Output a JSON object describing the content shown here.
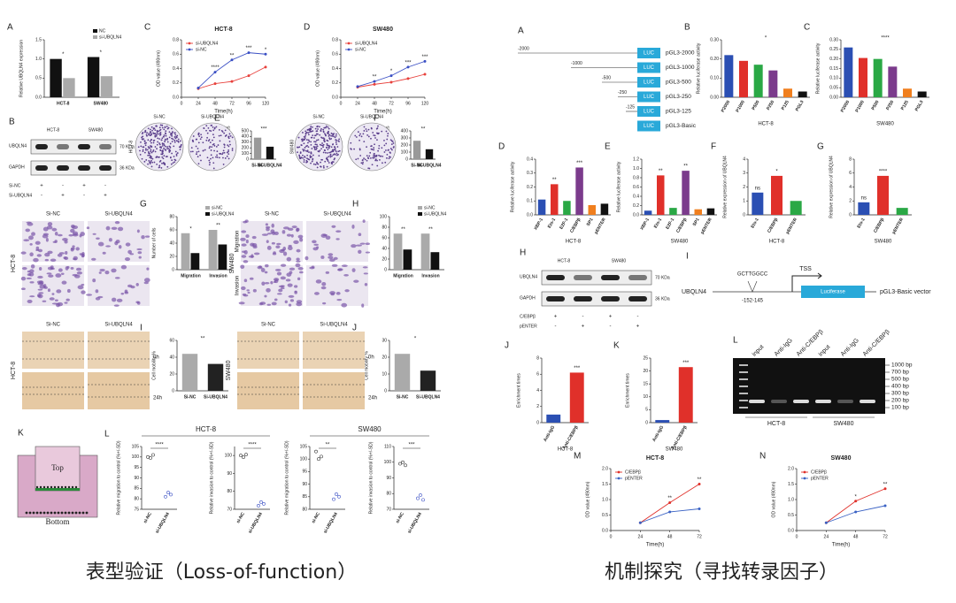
{
  "chart_data": [
    {
      "type": "bar",
      "panel": "A",
      "ylabel": "Relative UBQLN4 expression",
      "categories": [
        "HCT-8",
        "SW480"
      ],
      "series": [
        {
          "name": "NC",
          "color": "#111111",
          "values": [
            1.0,
            1.05
          ]
        },
        {
          "name": "si-UBQLN4",
          "color": "#aaaaaa",
          "values": [
            0.5,
            0.55
          ]
        }
      ],
      "ylim": [
        0,
        1.5
      ],
      "yticks": [
        {
          "value": 0,
          "label": "0.0"
        },
        0.5,
        {
          "value": 1,
          "label": "1.0"
        },
        1.5
      ],
      "annotations": [
        "*",
        "*"
      ]
    },
    {
      "type": "line",
      "panel": "C",
      "title": "HCT-8",
      "xlabel": "Time(h)",
      "ylabel": "OD value (490nm)",
      "x": [
        24,
        48,
        72,
        96,
        120
      ],
      "xlim": [
        0,
        120
      ],
      "xticks": [
        0,
        24,
        48,
        72,
        96,
        120
      ],
      "series": [
        {
          "name": "si-UBQLN4",
          "color": "#e8413c",
          "values": [
            0.12,
            0.19,
            0.22,
            0.3,
            0.42
          ]
        },
        {
          "name": "si-NC",
          "color": "#3a4fc4",
          "values": [
            0.13,
            0.35,
            0.52,
            0.62,
            0.6
          ]
        }
      ],
      "ylim": [
        0,
        0.8
      ],
      "yticks": [
        {
          "value": 0,
          "label": "0.0"
        },
        0.2,
        0.4,
        0.6,
        0.8
      ],
      "annotations": [
        "****",
        "**",
        "***",
        "*"
      ]
    },
    {
      "type": "line",
      "panel": "D",
      "title": "SW480",
      "xlabel": "Time(h)",
      "ylabel": "OD value (490nm)",
      "x": [
        24,
        48,
        72,
        96,
        120
      ],
      "xlim": [
        0,
        120
      ],
      "xticks": [
        0,
        24,
        48,
        72,
        96,
        120
      ],
      "series": [
        {
          "name": "si-UBQLN4",
          "color": "#e8413c",
          "values": [
            0.14,
            0.18,
            0.21,
            0.26,
            0.32
          ]
        },
        {
          "name": "si-NC",
          "color": "#3a4fc4",
          "values": [
            0.15,
            0.22,
            0.3,
            0.42,
            0.5
          ]
        }
      ],
      "ylim": [
        0,
        0.8
      ],
      "yticks": [
        {
          "value": 0,
          "label": "0.0"
        },
        0.2,
        0.4,
        0.6,
        0.8
      ],
      "annotations": [
        "**",
        "*",
        "***",
        "***"
      ]
    },
    {
      "type": "bar",
      "panel": "E",
      "ylabel": "Number of colonies",
      "categories": [
        "Si-NC",
        "Si-UBQLN4"
      ],
      "values": [
        380,
        220
      ],
      "colors": [
        "#999999",
        "#111111"
      ],
      "ylim": [
        0,
        500
      ],
      "yticks": [
        0,
        100,
        200,
        300,
        400,
        500
      ],
      "annotations": [
        "***"
      ]
    },
    {
      "type": "bar",
      "panel": "F",
      "ylabel": "Number of colonies",
      "categories": [
        "Si-NC",
        "Si-UBQLN4"
      ],
      "values": [
        260,
        140
      ],
      "colors": [
        "#999999",
        "#111111"
      ],
      "ylim": [
        0,
        400
      ],
      "yticks": [
        0,
        100,
        200,
        300,
        400
      ],
      "annotations": [
        "**"
      ]
    },
    {
      "type": "bar",
      "panel": "G",
      "ylabel": "Number of cells",
      "categories": [
        "Migration",
        "Invasion"
      ],
      "series": [
        {
          "name": "si-NC",
          "color": "#aaaaaa",
          "values": [
            55,
            60
          ]
        },
        {
          "name": "si-UBQLN4",
          "color": "#111111",
          "values": [
            25,
            38
          ]
        }
      ],
      "ylim": [
        0,
        80
      ],
      "yticks": [
        0,
        20,
        40,
        60,
        80
      ],
      "annotations": [
        "*",
        "**"
      ]
    },
    {
      "type": "bar",
      "panel": "H",
      "ylabel": "Number of cells",
      "categories": [
        "Migration",
        "Invasion"
      ],
      "series": [
        {
          "name": "si-NC",
          "color": "#aaaaaa",
          "values": [
            68,
            68
          ]
        },
        {
          "name": "si-UBQLN4",
          "color": "#111111",
          "values": [
            38,
            33
          ]
        }
      ],
      "ylim": [
        0,
        100
      ],
      "yticks": [
        0,
        20,
        40,
        60,
        80,
        100
      ],
      "annotations": [
        "**",
        "**"
      ]
    },
    {
      "type": "bar",
      "panel": "I",
      "ylabel": "Cell mobility %",
      "categories": [
        "Si-NC",
        "Si-UBQLN4"
      ],
      "values": [
        44,
        32
      ],
      "colors": [
        "#aaaaaa",
        "#222222"
      ],
      "ylim": [
        0,
        60
      ],
      "yticks": [
        0,
        20,
        40,
        60
      ],
      "annotations": [
        "**"
      ]
    },
    {
      "type": "bar",
      "panel": "J",
      "ylabel": "Cell mobility %",
      "categories": [
        "Si-NC",
        "Si-UBQLN4"
      ],
      "values": [
        22,
        12
      ],
      "colors": [
        "#aaaaaa",
        "#222222"
      ],
      "ylim": [
        0,
        30
      ],
      "yticks": [
        0,
        10,
        20,
        30
      ],
      "annotations": [
        "*"
      ]
    },
    {
      "type": "dot",
      "panel": "L",
      "ylabel": "Relative migration to control (%+/-SD)",
      "categories": [
        "si-NC",
        "si-UBQLN4"
      ],
      "points": [
        [
          100,
          99.5,
          101
        ],
        [
          81,
          83,
          82
        ]
      ],
      "ylim": [
        75,
        105
      ],
      "yticks": [
        75,
        80,
        85,
        90,
        95,
        100,
        105
      ],
      "annotations": [
        "****"
      ]
    },
    {
      "type": "dot",
      "ylabel": "Relative invasion to control (%+/-SD)",
      "categories": [
        "si-NC",
        "si-UBQLN4"
      ],
      "points": [
        [
          100,
          99,
          100.5
        ],
        [
          72,
          74,
          73
        ]
      ],
      "ylim": [
        70,
        105
      ],
      "yticks": [
        70,
        80,
        90,
        100
      ],
      "annotations": [
        "****"
      ]
    },
    {
      "type": "dot",
      "ylabel": "Relative migration to control (%+/-SD)",
      "categories": [
        "si-NC",
        "si-UBQLN4"
      ],
      "points": [
        [
          103,
          100,
          101
        ],
        [
          84,
          86,
          85
        ]
      ],
      "ylim": [
        80,
        105
      ],
      "yticks": [
        80,
        85,
        90,
        95,
        100,
        105
      ],
      "annotations": [
        "**"
      ]
    },
    {
      "type": "dot",
      "ylabel": "Relative invasion to control (%+/-SD)",
      "categories": [
        "si-NC",
        "si-UBQLN4"
      ],
      "points": [
        [
          99,
          100,
          98
        ],
        [
          77,
          79,
          76
        ]
      ],
      "ylim": [
        70,
        110
      ],
      "yticks": [
        70,
        80,
        90,
        100,
        110
      ],
      "annotations": [
        "***"
      ]
    },
    {
      "type": "bar",
      "panel": "B",
      "xlabel": "HCT-8",
      "ylabel": "Relative luciferase activity",
      "categories": [
        "P2000",
        "P1000",
        "P500",
        "P250",
        "P125",
        "PGL3"
      ],
      "values": [
        0.22,
        0.19,
        0.17,
        0.14,
        0.045,
        0.03
      ],
      "colors": [
        "#2b4fb3",
        "#e0302a",
        "#2aa845",
        "#7b3b8c",
        "#f07f1e",
        "#111111"
      ],
      "ylim": [
        0,
        0.3
      ],
      "yticks": [
        {
          "value": 0,
          "label": "0.00"
        },
        {
          "value": 0.1,
          "label": "0.10"
        },
        {
          "value": 0.2,
          "label": "0.20"
        },
        {
          "value": 0.3,
          "label": "0.30"
        }
      ],
      "annotations": [
        "*"
      ]
    },
    {
      "type": "bar",
      "panel": "C",
      "xlabel": "SW480",
      "ylabel": "Relative luciferase activity",
      "categories": [
        "P2000",
        "P1000",
        "P500",
        "P250",
        "P125",
        "PGL3"
      ],
      "values": [
        0.26,
        0.205,
        0.2,
        0.16,
        0.045,
        0.03
      ],
      "colors": [
        "#2b4fb3",
        "#e0302a",
        "#2aa845",
        "#7b3b8c",
        "#f07f1e",
        "#111111"
      ],
      "ylim": [
        0,
        0.3
      ],
      "yticks": [
        {
          "value": 0,
          "label": "0.00"
        },
        0.05,
        {
          "value": 0.1,
          "label": "0.10"
        },
        0.15,
        {
          "value": 0.2,
          "label": "0.20"
        },
        0.25,
        {
          "value": 0.3,
          "label": "0.30"
        }
      ],
      "annotations": [
        "****"
      ]
    },
    {
      "type": "bar",
      "panel": "D",
      "xlabel": "HCT-8",
      "ylabel": "Relative luciferase activity",
      "categories": [
        "XBP-1",
        "Ets-1",
        "E2F-1",
        "C/EBPβ",
        "SP1",
        "pENTER"
      ],
      "values": [
        0.11,
        0.22,
        0.1,
        0.34,
        0.07,
        0.08
      ],
      "colors": [
        "#2b4fb3",
        "#e0302a",
        "#2aa845",
        "#7b3b8c",
        "#f07f1e",
        "#111111"
      ],
      "ylim": [
        0,
        0.4
      ],
      "yticks": [
        {
          "value": 0,
          "label": "0.0"
        },
        0.1,
        0.2,
        0.3,
        0.4
      ],
      "annotations": [
        null,
        "**",
        null,
        "***",
        null,
        null
      ]
    },
    {
      "type": "bar",
      "panel": "E",
      "xlabel": "SW480",
      "ylabel": "Relative luciferase activity",
      "categories": [
        "XBP-1",
        "Ets-1",
        "E2F-1",
        "C/EBPβ",
        "SP1",
        "pENTER"
      ],
      "values": [
        0.09,
        0.85,
        0.15,
        0.95,
        0.12,
        0.14
      ],
      "colors": [
        "#2b4fb3",
        "#e0302a",
        "#2aa845",
        "#7b3b8c",
        "#f07f1e",
        "#111111"
      ],
      "ylim": [
        0,
        1.2
      ],
      "yticks": [
        {
          "value": 0,
          "label": "0.0"
        },
        0.2,
        0.4,
        0.6,
        0.8,
        {
          "value": 1,
          "label": "1.0"
        },
        1.2
      ],
      "annotations": [
        null,
        "**",
        null,
        "**",
        null,
        null
      ]
    },
    {
      "type": "bar",
      "panel": "F",
      "xlabel": "HCT-8",
      "ylabel": "Relative expression of UBQLN4",
      "categories": [
        "Ets-1",
        "C/EBPβ",
        "pENTER"
      ],
      "values": [
        1.6,
        2.8,
        1.0
      ],
      "colors": [
        "#2b4fb3",
        "#e0302a",
        "#2aa845"
      ],
      "ylim": [
        0,
        4
      ],
      "yticks": [
        0,
        1,
        2,
        3,
        4
      ],
      "annotations": [
        "ns",
        "*",
        null
      ]
    },
    {
      "type": "bar",
      "panel": "G",
      "xlabel": "SW480",
      "ylabel": "Relative expression of UBQLN4",
      "categories": [
        "Ets-1",
        "C/EBPβ",
        "pENTER"
      ],
      "values": [
        1.8,
        5.6,
        1.0
      ],
      "colors": [
        "#2b4fb3",
        "#e0302a",
        "#2aa845"
      ],
      "ylim": [
        0,
        8
      ],
      "yticks": [
        0,
        2,
        4,
        6,
        8
      ],
      "annotations": [
        "ns",
        "****",
        null
      ]
    },
    {
      "type": "bar",
      "panel": "J",
      "xlabel": "HCT-8",
      "ylabel": "Enrichment times",
      "categories": [
        "Anti-IgG",
        "Anti-C/EBPβ"
      ],
      "values": [
        1.0,
        6.2
      ],
      "colors": [
        "#2b4fb3",
        "#e0302a"
      ],
      "ylim": [
        0,
        8
      ],
      "yticks": [
        0,
        2,
        4,
        6,
        8
      ],
      "annotations": [
        null,
        "***"
      ]
    },
    {
      "type": "bar",
      "panel": "K",
      "xlabel": "SW480",
      "ylabel": "Enrichment times",
      "categories": [
        "Anti-IgG",
        "Anti-C/EBPβ"
      ],
      "values": [
        1.0,
        21.5
      ],
      "colors": [
        "#2b4fb3",
        "#e0302a"
      ],
      "ylim": [
        0,
        25
      ],
      "yticks": [
        0,
        5,
        10,
        15,
        20,
        25
      ],
      "annotations": [
        null,
        "***"
      ]
    },
    {
      "type": "line",
      "panel": "M",
      "title": "HCT-8",
      "xlabel": "Time(h)",
      "ylabel": "OD value (490nm)",
      "x": [
        24,
        48,
        72
      ],
      "xlim": [
        0,
        72
      ],
      "xticks": [
        0,
        24,
        48,
        72
      ],
      "series": [
        {
          "name": "C/EBPβ",
          "color": "#e0302a",
          "values": [
            0.25,
            0.9,
            1.5
          ]
        },
        {
          "name": "pENTER",
          "color": "#3a62c4",
          "values": [
            0.25,
            0.6,
            0.7
          ]
        }
      ],
      "ylim": [
        0,
        2
      ],
      "yticks": [
        {
          "value": 0,
          "label": "0.0"
        },
        0.5,
        {
          "value": 1,
          "label": "1.0"
        },
        1.5,
        {
          "value": 2,
          "label": "2.0"
        }
      ],
      "annotations": [
        null,
        "**",
        "**"
      ]
    },
    {
      "type": "line",
      "panel": "N",
      "title": "SW480",
      "xlabel": "Time(h)",
      "ylabel": "OD value (490nm)",
      "x": [
        24,
        48,
        72
      ],
      "xlim": [
        0,
        72
      ],
      "xticks": [
        0,
        24,
        48,
        72
      ],
      "series": [
        {
          "name": "C/EBPβ",
          "color": "#e0302a",
          "values": [
            0.25,
            0.95,
            1.35
          ]
        },
        {
          "name": "pENTER",
          "color": "#3a62c4",
          "values": [
            0.25,
            0.6,
            0.8
          ]
        }
      ],
      "ylim": [
        0,
        2
      ],
      "yticks": [
        {
          "value": 0,
          "label": "0.0"
        },
        0.5,
        {
          "value": 1,
          "label": "1.0"
        },
        1.5,
        {
          "value": 2,
          "label": "2.0"
        }
      ],
      "annotations": [
        null,
        "*",
        "**"
      ]
    }
  ],
  "figure": {
    "captions": [
      "表型验证（Loss-of-function）",
      "机制探究（寻找转录因子）"
    ],
    "left": {
      "B": {
        "letter": "B",
        "columns": [
          "HCT-8",
          "SW480"
        ],
        "rows": [
          "UBQLN4",
          "GAPDH"
        ],
        "sizes": [
          "70 KDa",
          "36 KDa"
        ],
        "conditions": [
          {
            "name": "Si-NC",
            "signs": [
              "+",
              "-",
              "+",
              "-"
            ]
          },
          {
            "name": "Si-UBQLN4",
            "signs": [
              "-",
              "+",
              "-",
              "+"
            ]
          }
        ]
      },
      "E": {
        "groups": [
          "Si-NC",
          "Si-UBQLN4"
        ],
        "side": "HCT-8"
      },
      "F": {
        "groups": [
          "Si-NC",
          "Si-UBQLN4"
        ],
        "side": "SW480"
      },
      "G": {
        "columns": [
          "Si-NC",
          "Si-UBQLN4"
        ],
        "side": "HCT-8"
      },
      "H": {
        "columns": [
          "Si-NC",
          "Si-UBQLN4"
        ],
        "rows": [
          "Migration",
          "Invasion"
        ],
        "side": "SW480"
      },
      "I": {
        "columns": [
          "Si-NC",
          "Si-UBQLN4"
        ],
        "times": [
          "0h",
          "24h"
        ],
        "side": "HCT-8"
      },
      "J": {
        "columns": [
          "Si-NC",
          "Si-UBQLN4"
        ],
        "times": [
          "0h",
          "24h"
        ],
        "side": "SW480"
      },
      "K": {
        "letter": "K",
        "labels": [
          "Top",
          "Bottom"
        ]
      },
      "L": {
        "groups": [
          "HCT-8",
          "SW480"
        ]
      }
    },
    "right": {
      "A": {
        "letter": "A",
        "box": "LUC",
        "constructs": [
          {
            "pos": "-2000",
            "name": "pGL3-2000"
          },
          {
            "pos": "-1000",
            "name": "pGL3-1000"
          },
          {
            "pos": "-500",
            "name": "pGL3-500"
          },
          {
            "pos": "-250",
            "name": "pGL3-250"
          },
          {
            "pos": "-125",
            "name": "pGL3-125"
          },
          {
            "name": "pGL3-Basic"
          }
        ]
      },
      "H": {
        "letter": "H",
        "columns": [
          "HCT-8",
          "SW480"
        ],
        "rows": [
          "UBQLN4",
          "GAPDH"
        ],
        "sizes": [
          "70 KDa",
          "36 KDa"
        ],
        "conditions": [
          {
            "name": "C/EBPβ",
            "signs": [
              "+",
              "-",
              "+",
              "-"
            ]
          },
          {
            "name": "pENTER",
            "signs": [
              "-",
              "+",
              "-",
              "+"
            ]
          }
        ]
      },
      "I": {
        "letter": "I",
        "gene": "UBQLN4",
        "site": "GCTTGGCC",
        "range": "-152-145",
        "tss": "TSS",
        "box": "Luciferase",
        "vector": "pGL3-Basic vector"
      },
      "L": {
        "letter": "L",
        "lanes": [
          "input",
          "Anti-IgG",
          "Anti-C/EBPβ",
          "input",
          "Anti-IgG",
          "Anti-C/EBPβ"
        ],
        "markers": [
          "1000 bp",
          "700 bp",
          "500 bp",
          "400 bp",
          "300 bp",
          "200 bp",
          "100 bp"
        ],
        "groups": [
          "HCT-8",
          "SW480"
        ]
      }
    }
  }
}
